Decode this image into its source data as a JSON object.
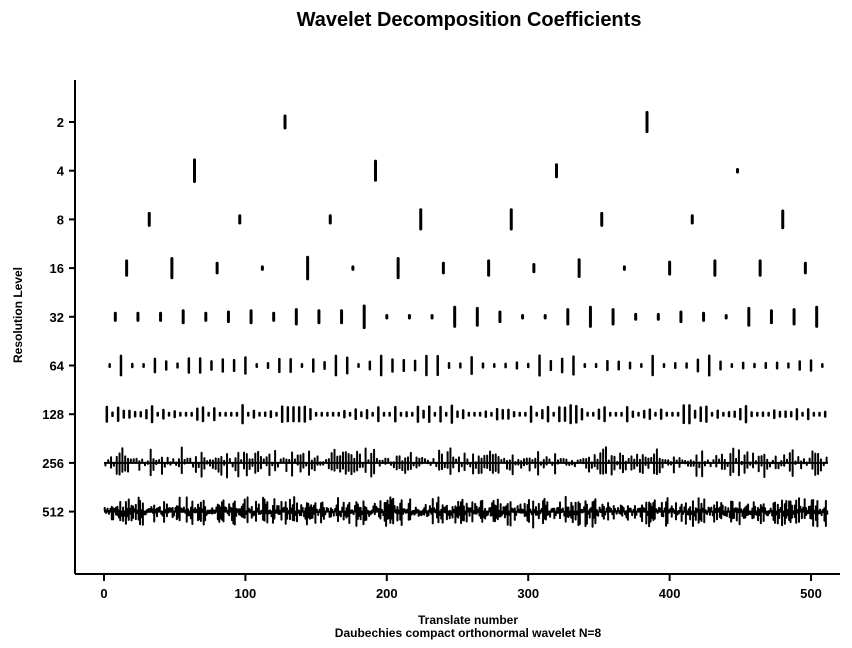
{
  "chart_data": {
    "type": "scatter",
    "title": "Wavelet Decomposition Coefficients",
    "xlabel": "Translate number",
    "xlabel_sub": "Daubechies compact orthonormal wavelet N=8",
    "ylabel": "Resolution Level",
    "xlim": [
      0,
      512
    ],
    "x_ticks": [
      0,
      100,
      200,
      300,
      400,
      500
    ],
    "x_tick_labels": [
      "0",
      "100",
      "200",
      "300",
      "400",
      "500"
    ],
    "levels": [
      "2",
      "4",
      "8",
      "16",
      "32",
      "64",
      "128",
      "256",
      "512"
    ],
    "grid": false,
    "color": "#000000",
    "description_note": "",
    "series": [
      {
        "level": "2",
        "x": [
          128,
          384
        ],
        "values": [
          0.5,
          0.8
        ]
      },
      {
        "level": "4",
        "x": [
          64,
          192,
          320,
          448
        ],
        "values": [
          0.9,
          0.8,
          0.5,
          0.1
        ]
      },
      {
        "level": "8",
        "x": [
          32,
          96,
          160,
          224,
          288,
          352,
          416,
          480
        ],
        "values": [
          0.5,
          0.3,
          0.3,
          0.8,
          0.8,
          0.5,
          0.3,
          0.7
        ]
      },
      {
        "level": "16",
        "x": [
          16,
          48,
          80,
          112,
          144,
          176,
          208,
          240,
          272,
          304,
          336,
          368,
          400,
          432,
          464,
          496
        ],
        "values": [
          0.6,
          0.8,
          0.4,
          0.1,
          0.9,
          0.1,
          0.8,
          0.4,
          0.6,
          0.3,
          0.7,
          0.1,
          0.5,
          0.6,
          0.6,
          0.4
        ]
      },
      {
        "level": "32",
        "x": [
          8,
          24,
          40,
          56,
          72,
          88,
          104,
          120,
          136,
          152,
          168,
          184,
          200,
          216,
          232,
          248,
          264,
          280,
          296,
          312,
          328,
          344,
          360,
          376,
          392,
          408,
          424,
          440,
          456,
          472,
          488,
          504
        ],
        "values": [
          0.3,
          0.3,
          0.3,
          0.5,
          0.3,
          0.4,
          0.5,
          0.3,
          0.6,
          0.5,
          0.5,
          0.9,
          0.1,
          0.1,
          0.1,
          0.8,
          0.7,
          0.4,
          0.1,
          0.1,
          0.6,
          0.8,
          0.6,
          0.2,
          0.2,
          0.4,
          0.3,
          0.1,
          0.7,
          0.5,
          0.6,
          0.8
        ]
      },
      {
        "level": "64",
        "summary": "64 coefficients at translates 4, 12, ..., 508; small to moderate magnitudes"
      },
      {
        "level": "128",
        "summary": "128 coefficients at translates 2, 6, ..., 510; mostly small magnitudes"
      },
      {
        "level": "256",
        "summary": "256 coefficients at translates 1, 3, ..., 511; dense noisy signal"
      },
      {
        "level": "512",
        "summary": "512 coefficients at every translate 0..511; dense noisy signal"
      }
    ]
  }
}
